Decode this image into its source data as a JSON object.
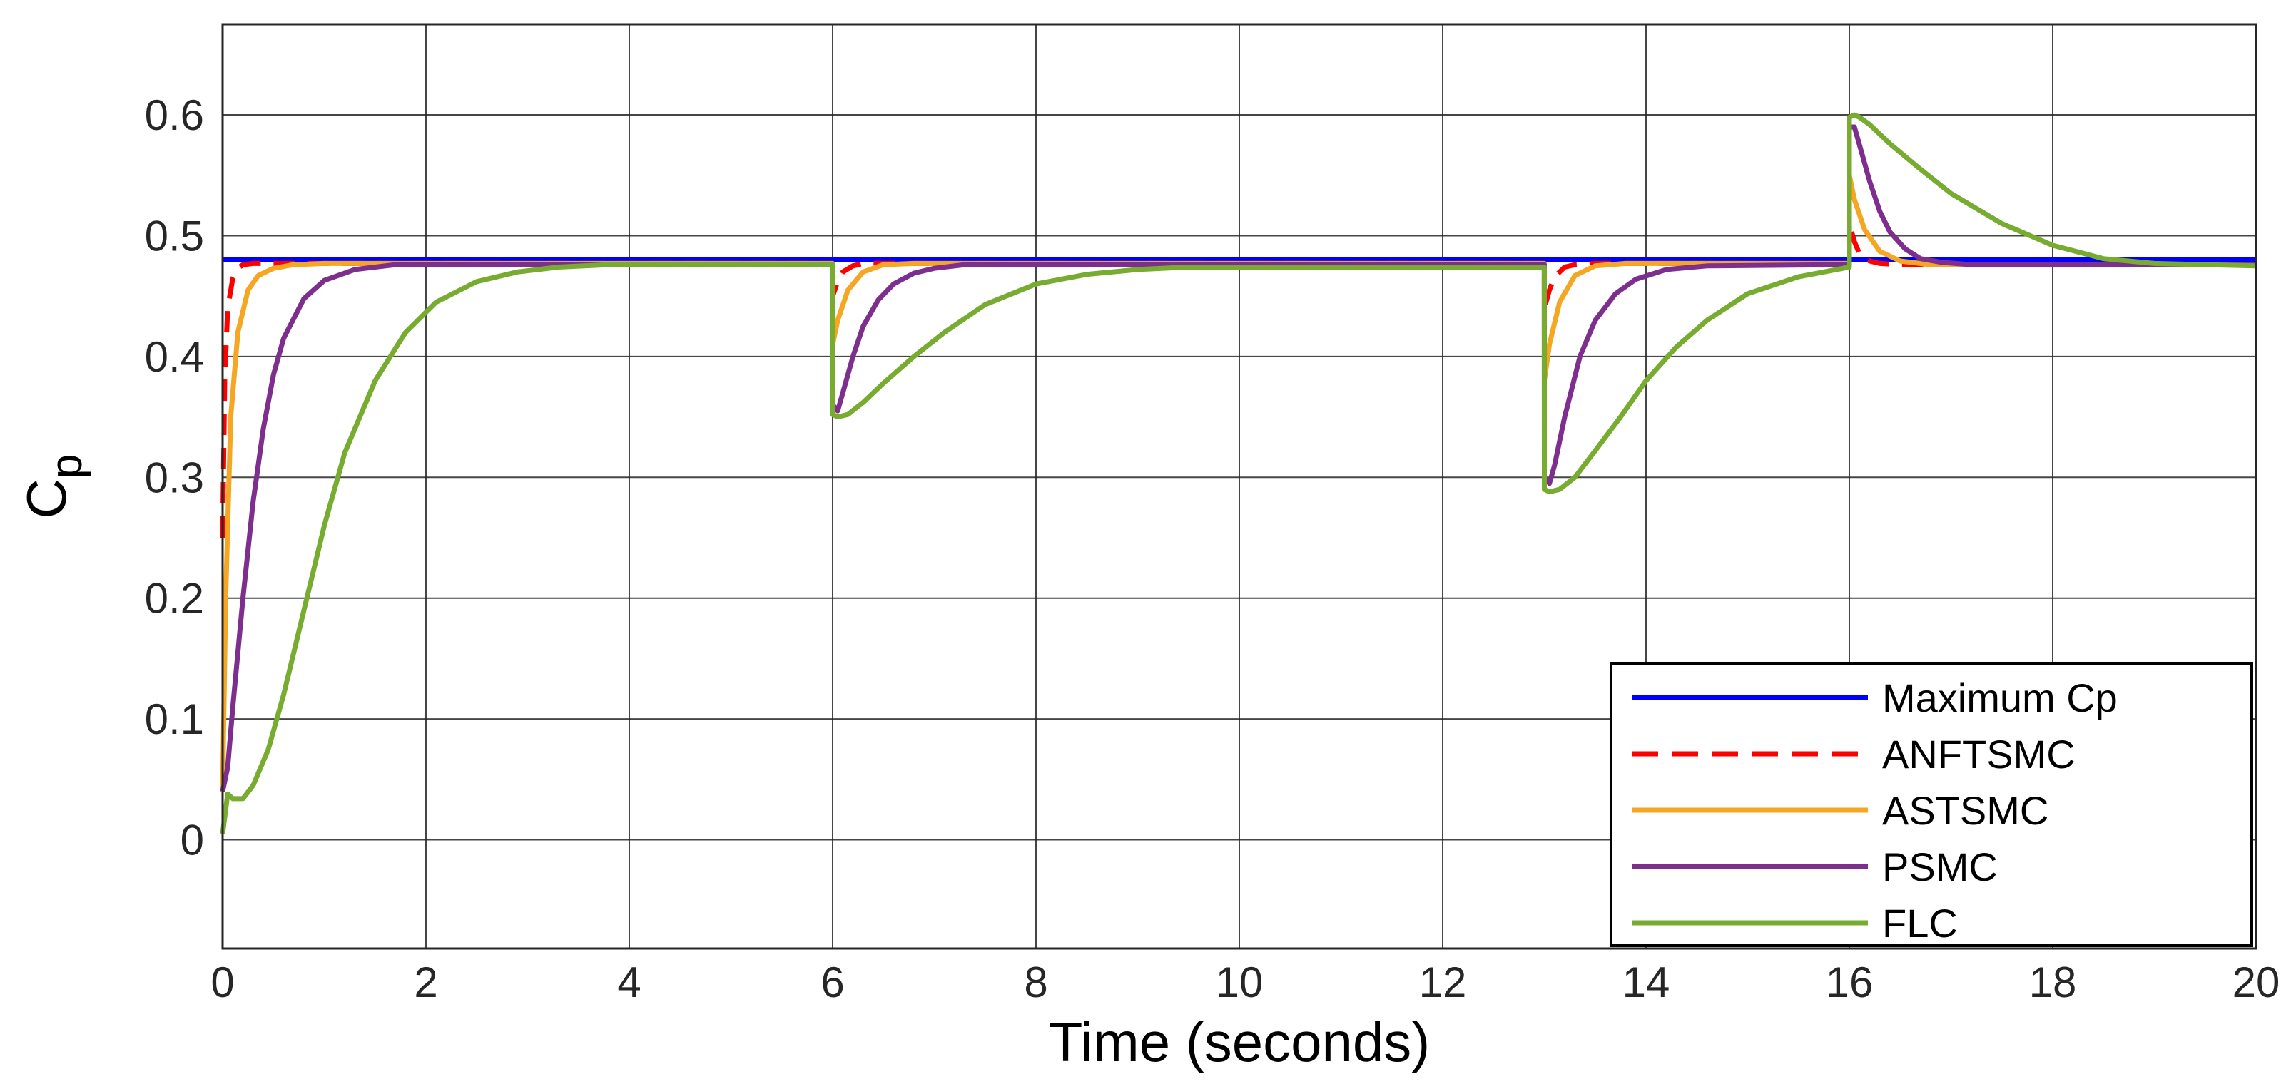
{
  "chart_data": {
    "type": "line",
    "title": "",
    "xlabel": "Time (seconds)",
    "ylabel": "Cp",
    "ylabel_main": "C",
    "ylabel_sub": "p",
    "xlim": [
      0,
      20
    ],
    "ylim": [
      -0.09,
      0.675
    ],
    "xticks": [
      0,
      2,
      4,
      6,
      8,
      10,
      12,
      14,
      16,
      18,
      20
    ],
    "yticks": [
      0,
      0.1,
      0.2,
      0.3,
      0.4,
      0.5,
      0.6
    ],
    "xtick_labels": [
      "0",
      "2",
      "4",
      "6",
      "8",
      "10",
      "12",
      "14",
      "16",
      "18",
      "20"
    ],
    "ytick_labels": [
      "0",
      "0.1",
      "0.2",
      "0.3",
      "0.4",
      "0.5",
      "0.6"
    ],
    "grid": true,
    "legend_position": "bottom-right",
    "series": [
      {
        "name": "Maximum Cp",
        "color": "#0000FF",
        "dash": "solid",
        "x": [
          0,
          20
        ],
        "y": [
          0.48,
          0.48
        ]
      },
      {
        "name": "ANFTSMC",
        "color": "#FF0000",
        "dash": "dashed",
        "x": [
          0,
          0.02,
          0.05,
          0.1,
          0.15,
          0.2,
          0.3,
          5.999,
          6.0,
          6.05,
          6.1,
          6.2,
          6.3,
          6.5,
          12.999,
          13.0,
          13.05,
          13.1,
          13.2,
          13.3,
          13.5,
          15.999,
          16.0,
          16.05,
          16.1,
          16.2,
          16.3,
          16.5,
          20
        ],
        "y": [
          0.25,
          0.38,
          0.44,
          0.465,
          0.473,
          0.476,
          0.477,
          0.477,
          0.45,
          0.462,
          0.47,
          0.475,
          0.477,
          0.477,
          0.477,
          0.44,
          0.455,
          0.466,
          0.474,
          0.476,
          0.477,
          0.477,
          0.51,
          0.495,
          0.485,
          0.479,
          0.477,
          0.476,
          0.476
        ]
      },
      {
        "name": "ASTSMC",
        "color": "#F5A623",
        "dash": "solid",
        "x": [
          0,
          0.03,
          0.08,
          0.15,
          0.25,
          0.35,
          0.5,
          0.7,
          1.0,
          5.999,
          6.0,
          6.05,
          6.15,
          6.3,
          6.5,
          6.8,
          12.999,
          13.0,
          13.05,
          13.15,
          13.3,
          13.5,
          13.8,
          15.999,
          16.0,
          16.05,
          16.15,
          16.3,
          16.5,
          16.8,
          20
        ],
        "y": [
          0.04,
          0.2,
          0.35,
          0.42,
          0.455,
          0.467,
          0.473,
          0.476,
          0.477,
          0.477,
          0.41,
          0.43,
          0.455,
          0.47,
          0.476,
          0.477,
          0.477,
          0.38,
          0.41,
          0.445,
          0.467,
          0.475,
          0.477,
          0.477,
          0.55,
          0.53,
          0.505,
          0.487,
          0.479,
          0.476,
          0.476
        ]
      },
      {
        "name": "PSMC",
        "color": "#7E2F8E",
        "dash": "solid",
        "x": [
          0,
          0.05,
          0.1,
          0.2,
          0.3,
          0.4,
          0.5,
          0.6,
          0.8,
          1.0,
          1.3,
          1.7,
          5.999,
          6.0,
          6.05,
          6.1,
          6.2,
          6.3,
          6.45,
          6.6,
          6.8,
          7.0,
          7.3,
          12.999,
          13.0,
          13.05,
          13.1,
          13.2,
          13.35,
          13.5,
          13.7,
          13.9,
          14.2,
          14.6,
          15.999,
          16.0,
          16.05,
          16.1,
          16.2,
          16.3,
          16.4,
          16.55,
          16.7,
          16.9,
          17.2,
          20
        ],
        "y": [
          0.04,
          0.06,
          0.11,
          0.2,
          0.28,
          0.34,
          0.385,
          0.415,
          0.448,
          0.463,
          0.472,
          0.476,
          0.476,
          0.36,
          0.355,
          0.37,
          0.4,
          0.425,
          0.447,
          0.46,
          0.469,
          0.473,
          0.476,
          0.476,
          0.3,
          0.295,
          0.31,
          0.35,
          0.4,
          0.43,
          0.452,
          0.464,
          0.472,
          0.475,
          0.476,
          0.59,
          0.59,
          0.575,
          0.545,
          0.52,
          0.503,
          0.489,
          0.481,
          0.478,
          0.476,
          0.476
        ]
      },
      {
        "name": "FLC",
        "color": "#77AC30",
        "dash": "solid",
        "x": [
          0,
          0.05,
          0.1,
          0.2,
          0.3,
          0.45,
          0.6,
          0.8,
          1.0,
          1.2,
          1.5,
          1.8,
          2.1,
          2.5,
          2.9,
          3.3,
          3.8,
          5.999,
          6.0,
          6.05,
          6.15,
          6.3,
          6.5,
          6.8,
          7.1,
          7.5,
          8.0,
          8.5,
          9.0,
          9.5,
          12.999,
          13.0,
          13.05,
          13.15,
          13.3,
          13.5,
          13.75,
          14.0,
          14.3,
          14.6,
          15.0,
          15.5,
          15.999,
          16.0,
          16.05,
          16.1,
          16.2,
          16.4,
          16.7,
          17.0,
          17.5,
          18.0,
          18.5,
          19.0,
          20
        ],
        "y": [
          0.005,
          0.038,
          0.034,
          0.034,
          0.045,
          0.075,
          0.12,
          0.19,
          0.26,
          0.32,
          0.38,
          0.42,
          0.445,
          0.462,
          0.47,
          0.474,
          0.476,
          0.476,
          0.352,
          0.35,
          0.352,
          0.362,
          0.378,
          0.4,
          0.42,
          0.443,
          0.46,
          0.468,
          0.472,
          0.474,
          0.474,
          0.29,
          0.288,
          0.29,
          0.3,
          0.322,
          0.35,
          0.38,
          0.408,
          0.43,
          0.452,
          0.466,
          0.474,
          0.598,
          0.6,
          0.598,
          0.592,
          0.576,
          0.555,
          0.535,
          0.51,
          0.492,
          0.481,
          0.477,
          0.475
        ]
      }
    ]
  }
}
